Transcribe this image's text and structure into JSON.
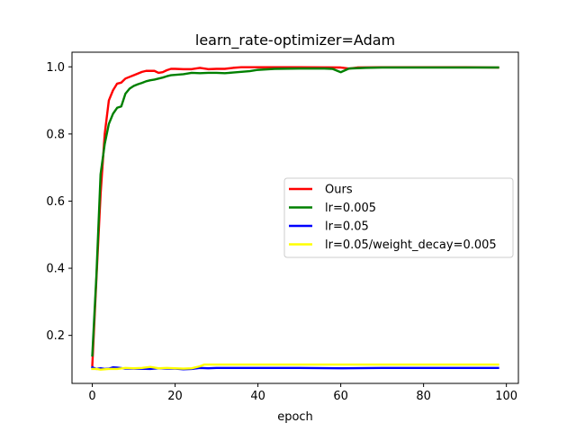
{
  "chart_data": {
    "type": "line",
    "title": "learn_rate-optimizer=Adam",
    "xlabel": "epoch",
    "ylabel": "",
    "xlim": [
      -4.9,
      102.9
    ],
    "ylim": [
      0.057,
      1.0436
    ],
    "xticks": [
      0,
      20,
      40,
      60,
      80,
      100
    ],
    "yticks": [
      0.2,
      0.4,
      0.6,
      0.8,
      1.0
    ],
    "xtick_labels": [
      "0",
      "20",
      "40",
      "60",
      "80",
      "100"
    ],
    "ytick_labels": [
      "0.2",
      "0.4",
      "0.6",
      "0.8",
      "1.0"
    ],
    "legend_position": "center-right",
    "grid": false,
    "series": [
      {
        "name": "Ours",
        "color": "#ff0000",
        "points": [
          [
            0,
            0.11
          ],
          [
            1,
            0.37
          ],
          [
            2,
            0.62
          ],
          [
            3,
            0.8
          ],
          [
            4,
            0.9
          ],
          [
            5,
            0.93
          ],
          [
            6,
            0.95
          ],
          [
            7,
            0.953
          ],
          [
            8,
            0.965
          ],
          [
            9,
            0.97
          ],
          [
            10,
            0.975
          ],
          [
            11,
            0.98
          ],
          [
            12,
            0.985
          ],
          [
            13,
            0.988
          ],
          [
            14,
            0.988
          ],
          [
            15,
            0.988
          ],
          [
            16,
            0.982
          ],
          [
            17,
            0.984
          ],
          [
            18,
            0.99
          ],
          [
            19,
            0.994
          ],
          [
            20,
            0.994
          ],
          [
            22,
            0.993
          ],
          [
            24,
            0.993
          ],
          [
            26,
            0.997
          ],
          [
            28,
            0.993
          ],
          [
            30,
            0.994
          ],
          [
            32,
            0.994
          ],
          [
            34,
            0.997
          ],
          [
            36,
            0.999
          ],
          [
            40,
            0.999
          ],
          [
            50,
            0.999
          ],
          [
            60,
            0.998
          ],
          [
            62,
            0.995
          ],
          [
            64,
            0.998
          ],
          [
            70,
            0.999
          ],
          [
            80,
            0.999
          ],
          [
            90,
            0.999
          ],
          [
            98,
            0.998
          ]
        ]
      },
      {
        "name": "lr=0.005",
        "color": "#008000",
        "points": [
          [
            0,
            0.14
          ],
          [
            1,
            0.38
          ],
          [
            2,
            0.68
          ],
          [
            3,
            0.77
          ],
          [
            4,
            0.83
          ],
          [
            5,
            0.86
          ],
          [
            6,
            0.878
          ],
          [
            7,
            0.882
          ],
          [
            8,
            0.92
          ],
          [
            9,
            0.935
          ],
          [
            10,
            0.943
          ],
          [
            11,
            0.948
          ],
          [
            12,
            0.952
          ],
          [
            13,
            0.957
          ],
          [
            14,
            0.96
          ],
          [
            15,
            0.962
          ],
          [
            16,
            0.965
          ],
          [
            17,
            0.968
          ],
          [
            18,
            0.972
          ],
          [
            19,
            0.975
          ],
          [
            20,
            0.976
          ],
          [
            22,
            0.978
          ],
          [
            24,
            0.982
          ],
          [
            26,
            0.981
          ],
          [
            28,
            0.982
          ],
          [
            30,
            0.982
          ],
          [
            32,
            0.981
          ],
          [
            34,
            0.983
          ],
          [
            36,
            0.985
          ],
          [
            38,
            0.987
          ],
          [
            40,
            0.991
          ],
          [
            44,
            0.994
          ],
          [
            50,
            0.995
          ],
          [
            56,
            0.995
          ],
          [
            58,
            0.994
          ],
          [
            60,
            0.984
          ],
          [
            62,
            0.995
          ],
          [
            64,
            0.996
          ],
          [
            66,
            0.997
          ],
          [
            70,
            0.998
          ],
          [
            80,
            0.998
          ],
          [
            90,
            0.998
          ],
          [
            98,
            0.998
          ]
        ]
      },
      {
        "name": "lr=0.05",
        "color": "#0000ff",
        "points": [
          [
            0,
            0.105
          ],
          [
            1,
            0.1
          ],
          [
            2,
            0.102
          ],
          [
            3,
            0.1
          ],
          [
            4,
            0.101
          ],
          [
            5,
            0.105
          ],
          [
            6,
            0.104
          ],
          [
            8,
            0.101
          ],
          [
            10,
            0.101
          ],
          [
            14,
            0.1
          ],
          [
            16,
            0.102
          ],
          [
            18,
            0.101
          ],
          [
            20,
            0.101
          ],
          [
            22,
            0.099
          ],
          [
            24,
            0.1
          ],
          [
            26,
            0.103
          ],
          [
            28,
            0.102
          ],
          [
            30,
            0.103
          ],
          [
            40,
            0.103
          ],
          [
            50,
            0.103
          ],
          [
            60,
            0.102
          ],
          [
            70,
            0.103
          ],
          [
            80,
            0.103
          ],
          [
            90,
            0.103
          ],
          [
            98,
            0.103
          ]
        ]
      },
      {
        "name": "lr=0.05/weight_decay=0.005",
        "color": "#ffff00",
        "points": [
          [
            0,
            0.1
          ],
          [
            1,
            0.1
          ],
          [
            2,
            0.098
          ],
          [
            4,
            0.1
          ],
          [
            6,
            0.1
          ],
          [
            8,
            0.103
          ],
          [
            10,
            0.102
          ],
          [
            12,
            0.103
          ],
          [
            14,
            0.106
          ],
          [
            16,
            0.102
          ],
          [
            18,
            0.103
          ],
          [
            20,
            0.102
          ],
          [
            22,
            0.101
          ],
          [
            24,
            0.102
          ],
          [
            26,
            0.108
          ],
          [
            27,
            0.113
          ],
          [
            30,
            0.113
          ],
          [
            40,
            0.113
          ],
          [
            50,
            0.113
          ],
          [
            60,
            0.113
          ],
          [
            70,
            0.113
          ],
          [
            80,
            0.113
          ],
          [
            90,
            0.113
          ],
          [
            98,
            0.113
          ]
        ]
      }
    ]
  }
}
